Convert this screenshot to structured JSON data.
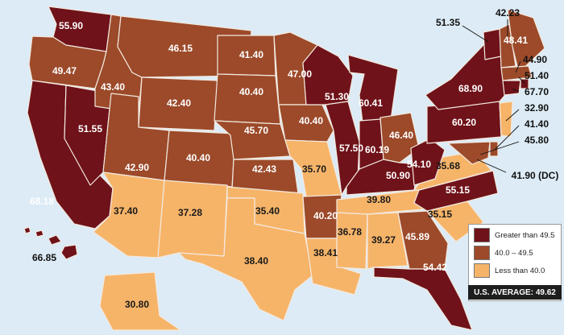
{
  "colors": {
    "high": "#6f1219",
    "mid": "#9c4a2a",
    "low": "#f6b469",
    "background": "#dcebf5"
  },
  "states": [
    {
      "abbr": "WA",
      "value": "55.90",
      "level": "high"
    },
    {
      "abbr": "OR",
      "value": "49.47",
      "level": "mid"
    },
    {
      "abbr": "CA",
      "value": "68.18",
      "level": "high"
    },
    {
      "abbr": "NV",
      "value": "51.55",
      "level": "high"
    },
    {
      "abbr": "ID",
      "value": "43.40",
      "level": "mid"
    },
    {
      "abbr": "MT",
      "value": "46.15",
      "level": "mid"
    },
    {
      "abbr": "WY",
      "value": "42.40",
      "level": "mid"
    },
    {
      "abbr": "UT",
      "value": "42.90",
      "level": "mid"
    },
    {
      "abbr": "CO",
      "value": "40.40",
      "level": "mid"
    },
    {
      "abbr": "AZ",
      "value": "37.40",
      "level": "low"
    },
    {
      "abbr": "NM",
      "value": "37.28",
      "level": "low"
    },
    {
      "abbr": "ND",
      "value": "41.40",
      "level": "mid"
    },
    {
      "abbr": "SD",
      "value": "40.40",
      "level": "mid"
    },
    {
      "abbr": "NE",
      "value": "45.70",
      "level": "mid"
    },
    {
      "abbr": "KS",
      "value": "42.43",
      "level": "mid"
    },
    {
      "abbr": "OK",
      "value": "35.40",
      "level": "low"
    },
    {
      "abbr": "TX",
      "value": "38.40",
      "level": "low"
    },
    {
      "abbr": "MN",
      "value": "47.00",
      "level": "mid"
    },
    {
      "abbr": "IA",
      "value": "40.40",
      "level": "mid"
    },
    {
      "abbr": "MO",
      "value": "35.70",
      "level": "low"
    },
    {
      "abbr": "AR",
      "value": "40.20",
      "level": "mid"
    },
    {
      "abbr": "LA",
      "value": "38.41",
      "level": "low"
    },
    {
      "abbr": "WI",
      "value": "51.30",
      "level": "high"
    },
    {
      "abbr": "IL",
      "value": "57.50",
      "level": "high"
    },
    {
      "abbr": "MI",
      "value": "60.41",
      "level": "high"
    },
    {
      "abbr": "IN",
      "value": "60.19",
      "level": "high"
    },
    {
      "abbr": "OH",
      "value": "46.40",
      "level": "mid"
    },
    {
      "abbr": "KY",
      "value": "50.90",
      "level": "high"
    },
    {
      "abbr": "TN",
      "value": "39.80",
      "level": "low"
    },
    {
      "abbr": "MS",
      "value": "36.78",
      "level": "low"
    },
    {
      "abbr": "AL",
      "value": "39.27",
      "level": "low"
    },
    {
      "abbr": "GA",
      "value": "45.89",
      "level": "mid"
    },
    {
      "abbr": "FL",
      "value": "54.42",
      "level": "high"
    },
    {
      "abbr": "SC",
      "value": "35.15",
      "level": "low"
    },
    {
      "abbr": "NC",
      "value": "55.15",
      "level": "high"
    },
    {
      "abbr": "VA",
      "value": "35.68",
      "level": "low"
    },
    {
      "abbr": "WV",
      "value": "54.10",
      "level": "high"
    },
    {
      "abbr": "PA",
      "value": "60.20",
      "level": "high"
    },
    {
      "abbr": "NY",
      "value": "68.90",
      "level": "high"
    },
    {
      "abbr": "VT",
      "value": "51.35",
      "level": "high"
    },
    {
      "abbr": "NH",
      "value": "42.23",
      "level": "mid"
    },
    {
      "abbr": "ME",
      "value": "48.41",
      "level": "mid"
    },
    {
      "abbr": "MA",
      "value": "44.90",
      "level": "mid"
    },
    {
      "abbr": "RI",
      "value": "51.40",
      "level": "high"
    },
    {
      "abbr": "CT",
      "value": "67.70",
      "level": "high"
    },
    {
      "abbr": "NJ",
      "value": "32.90",
      "level": "low"
    },
    {
      "abbr": "DE",
      "value": "41.40",
      "level": "mid"
    },
    {
      "abbr": "MD",
      "value": "45.80",
      "level": "mid"
    },
    {
      "abbr": "DC",
      "value": "41.90 (DC)",
      "level": "mid"
    },
    {
      "abbr": "AK",
      "value": "30.80",
      "level": "low"
    },
    {
      "abbr": "HI",
      "value": "66.85",
      "level": "high"
    }
  ],
  "legend": {
    "items": [
      {
        "label": "Greater than 49.5",
        "level": "high"
      },
      {
        "label": "40.0 – 49.5",
        "level": "mid"
      },
      {
        "label": "Less than 40.0",
        "level": "low"
      }
    ],
    "average_label": "U.S. AVERAGE: 49.62"
  }
}
